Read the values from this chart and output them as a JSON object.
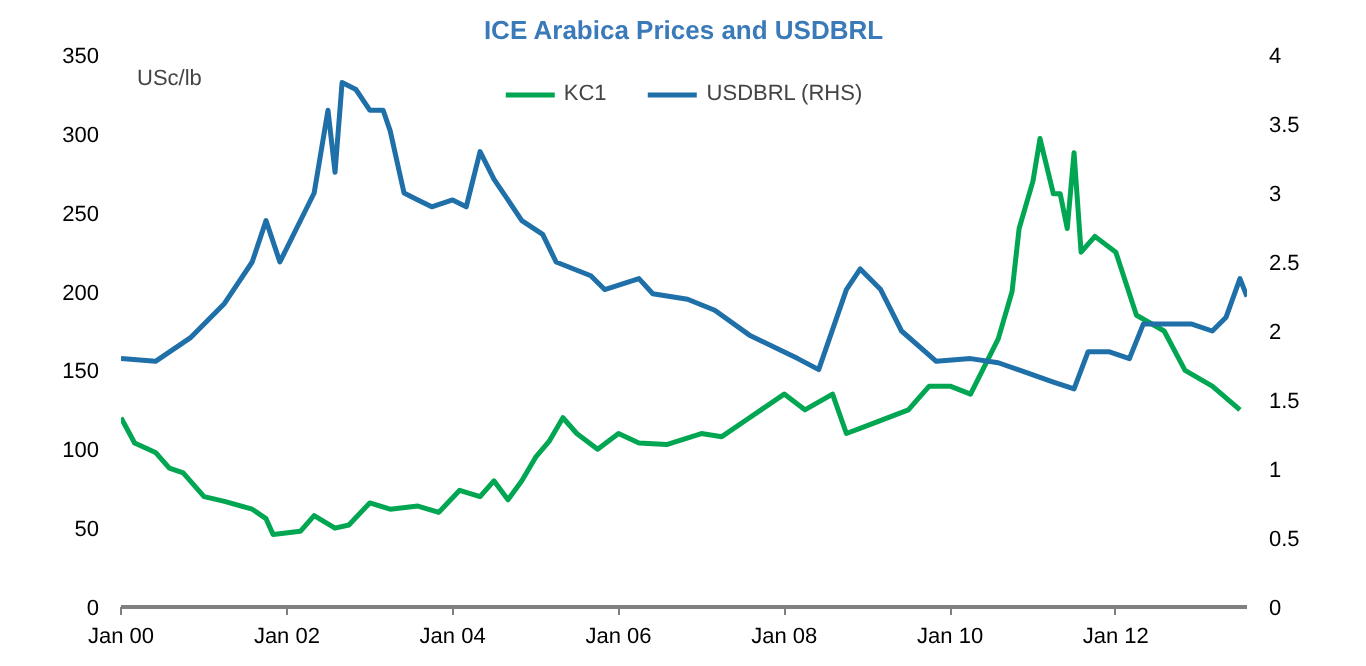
{
  "chart_data": {
    "type": "line",
    "title": "ICE Arabica Prices and USDBRL",
    "ylabel": "USc/lb",
    "x": [
      "2000-01",
      "2000-03",
      "2000-06",
      "2000-08",
      "2000-10",
      "2001-01",
      "2001-04",
      "2001-08",
      "2001-10",
      "2001-11",
      "2002-03",
      "2002-05",
      "2002-08",
      "2002-10",
      "2003-01",
      "2003-04",
      "2003-08",
      "2003-11",
      "2004-02",
      "2004-05",
      "2004-07",
      "2004-09",
      "2004-11",
      "2005-01",
      "2005-03",
      "2005-05",
      "2005-07",
      "2005-10",
      "2006-01",
      "2006-04",
      "2006-08",
      "2007-01",
      "2007-04",
      "2007-08",
      "2008-01",
      "2008-04",
      "2008-08",
      "2008-10",
      "2009-01",
      "2009-07",
      "2009-10",
      "2010-01",
      "2010-04",
      "2010-08",
      "2010-10",
      "2010-11",
      "2011-01",
      "2011-02",
      "2011-04",
      "2011-05",
      "2011-06",
      "2011-07",
      "2011-08",
      "2011-10",
      "2012-01",
      "2012-04",
      "2012-08",
      "2012-11",
      "2013-03",
      "2013-07"
    ],
    "series": [
      {
        "name": "KC1",
        "color": "#00a651",
        "values": [
          120,
          104,
          98,
          88,
          85,
          70,
          67,
          62,
          56,
          46,
          48,
          58,
          50,
          52,
          66,
          62,
          64,
          60,
          74,
          70,
          80,
          68,
          80,
          95,
          105,
          120,
          110,
          100,
          110,
          104,
          103,
          110,
          108,
          120,
          135,
          125,
          135,
          110,
          115,
          125,
          140,
          140,
          135,
          170,
          200,
          240,
          270,
          297,
          262,
          262,
          240,
          288,
          225,
          235,
          225,
          185,
          175,
          150,
          140,
          125
        ]
      },
      {
        "name": "USDBRL (RHS)",
        "color": "#1f6fa8",
        "axis": "y2",
        "x": [
          "2000-01",
          "2000-06",
          "2000-11",
          "2001-04",
          "2001-08",
          "2001-10",
          "2001-12",
          "2002-05",
          "2002-07",
          "2002-08",
          "2002-09",
          "2002-11",
          "2003-01",
          "2003-03",
          "2003-04",
          "2003-06",
          "2003-08",
          "2003-10",
          "2004-01",
          "2004-03",
          "2004-05",
          "2004-07",
          "2004-09",
          "2004-11",
          "2005-02",
          "2005-04",
          "2005-09",
          "2005-11",
          "2006-04",
          "2006-06",
          "2006-11",
          "2007-03",
          "2007-08",
          "2008-03",
          "2008-06",
          "2008-10",
          "2008-12",
          "2009-03",
          "2009-06",
          "2009-11",
          "2010-04",
          "2010-08",
          "2010-12",
          "2011-04",
          "2011-07",
          "2011-09",
          "2011-12",
          "2012-03",
          "2012-05",
          "2012-08",
          "2012-12",
          "2013-03",
          "2013-05",
          "2013-07",
          "2013-08"
        ],
        "values": [
          1.8,
          1.78,
          1.95,
          2.2,
          2.5,
          2.8,
          2.5,
          3.0,
          3.6,
          3.15,
          3.8,
          3.75,
          3.6,
          3.6,
          3.45,
          3.0,
          2.95,
          2.9,
          2.95,
          2.9,
          3.3,
          3.1,
          2.95,
          2.8,
          2.7,
          2.5,
          2.4,
          2.3,
          2.38,
          2.27,
          2.23,
          2.15,
          1.97,
          1.8,
          1.72,
          2.3,
          2.45,
          2.3,
          2.0,
          1.78,
          1.8,
          1.77,
          1.7,
          1.63,
          1.58,
          1.85,
          1.85,
          1.8,
          2.05,
          2.05,
          2.05,
          2.0,
          2.1,
          2.38,
          2.25
        ]
      }
    ],
    "xlim": [
      "2000-01",
      "2013-08"
    ],
    "xticks": [
      {
        "value": "2000-01",
        "label": "Jan 00"
      },
      {
        "value": "2002-01",
        "label": "Jan 02"
      },
      {
        "value": "2004-01",
        "label": "Jan 04"
      },
      {
        "value": "2006-01",
        "label": "Jan 06"
      },
      {
        "value": "2008-01",
        "label": "Jan 08"
      },
      {
        "value": "2010-01",
        "label": "Jan 10"
      },
      {
        "value": "2012-01",
        "label": "Jan 12"
      }
    ],
    "ylim": [
      0,
      350
    ],
    "yticks": [
      0,
      50,
      100,
      150,
      200,
      250,
      300,
      350
    ],
    "y2lim": [
      0,
      4
    ],
    "y2ticks": [
      0,
      {
        "value": 0.5,
        "label": "0.5"
      },
      1,
      {
        "value": 1.5,
        "label": "1.5"
      },
      2,
      {
        "value": 2.5,
        "label": "2.5"
      },
      3,
      {
        "value": 3.5,
        "label": "3.5"
      },
      4
    ],
    "legend": "top",
    "grid": false
  }
}
